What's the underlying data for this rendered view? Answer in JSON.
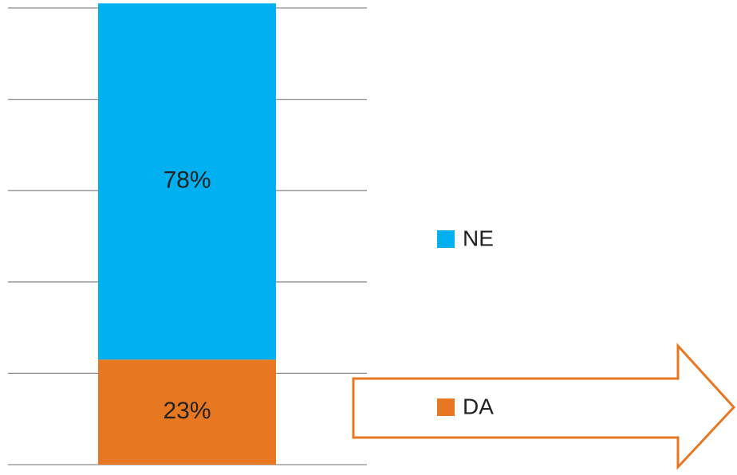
{
  "chart_data": {
    "type": "bar",
    "stacked": true,
    "categories": [
      null
    ],
    "series": [
      {
        "name": "DA",
        "color": "#e87722",
        "values": [
          23
        ],
        "value_labels": [
          "23%"
        ]
      },
      {
        "name": "NE",
        "color": "#00b0f0",
        "values": [
          78
        ],
        "value_labels": [
          "78%"
        ]
      }
    ],
    "ylim": [
      0,
      100
    ],
    "yticks": [
      0,
      20,
      40,
      60,
      80,
      100
    ],
    "grid": true,
    "legend": "right"
  }
}
